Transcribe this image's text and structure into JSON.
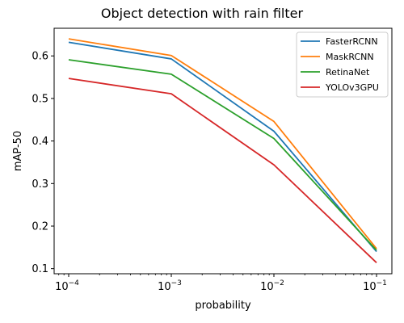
{
  "chart_data": {
    "type": "line",
    "title": "Object detection with rain filter",
    "xlabel": "probability",
    "ylabel": "mAP-50",
    "xscale": "log",
    "x": [
      0.0001,
      0.001,
      0.01,
      0.1
    ],
    "xtick_labels": [
      {
        "base": "10",
        "exp": "−4"
      },
      {
        "base": "10",
        "exp": "−3"
      },
      {
        "base": "10",
        "exp": "−2"
      },
      {
        "base": "10",
        "exp": "−1"
      }
    ],
    "yticks": [
      "0.1",
      "0.2",
      "0.3",
      "0.4",
      "0.5",
      "0.6"
    ],
    "ylim": [
      0.088,
      0.665
    ],
    "legend_position": "top-right",
    "grid": false,
    "series": [
      {
        "name": "FasterRCNN",
        "color": "#1f77b4",
        "values": [
          0.632,
          0.593,
          0.423,
          0.14
        ]
      },
      {
        "name": "MaskRCNN",
        "color": "#ff7f0e",
        "values": [
          0.64,
          0.601,
          0.446,
          0.147
        ]
      },
      {
        "name": "RetinaNet",
        "color": "#2ca02c",
        "values": [
          0.591,
          0.557,
          0.406,
          0.143
        ]
      },
      {
        "name": "YOLOv3GPU",
        "color": "#d62728",
        "values": [
          0.547,
          0.511,
          0.344,
          0.114
        ]
      }
    ]
  }
}
